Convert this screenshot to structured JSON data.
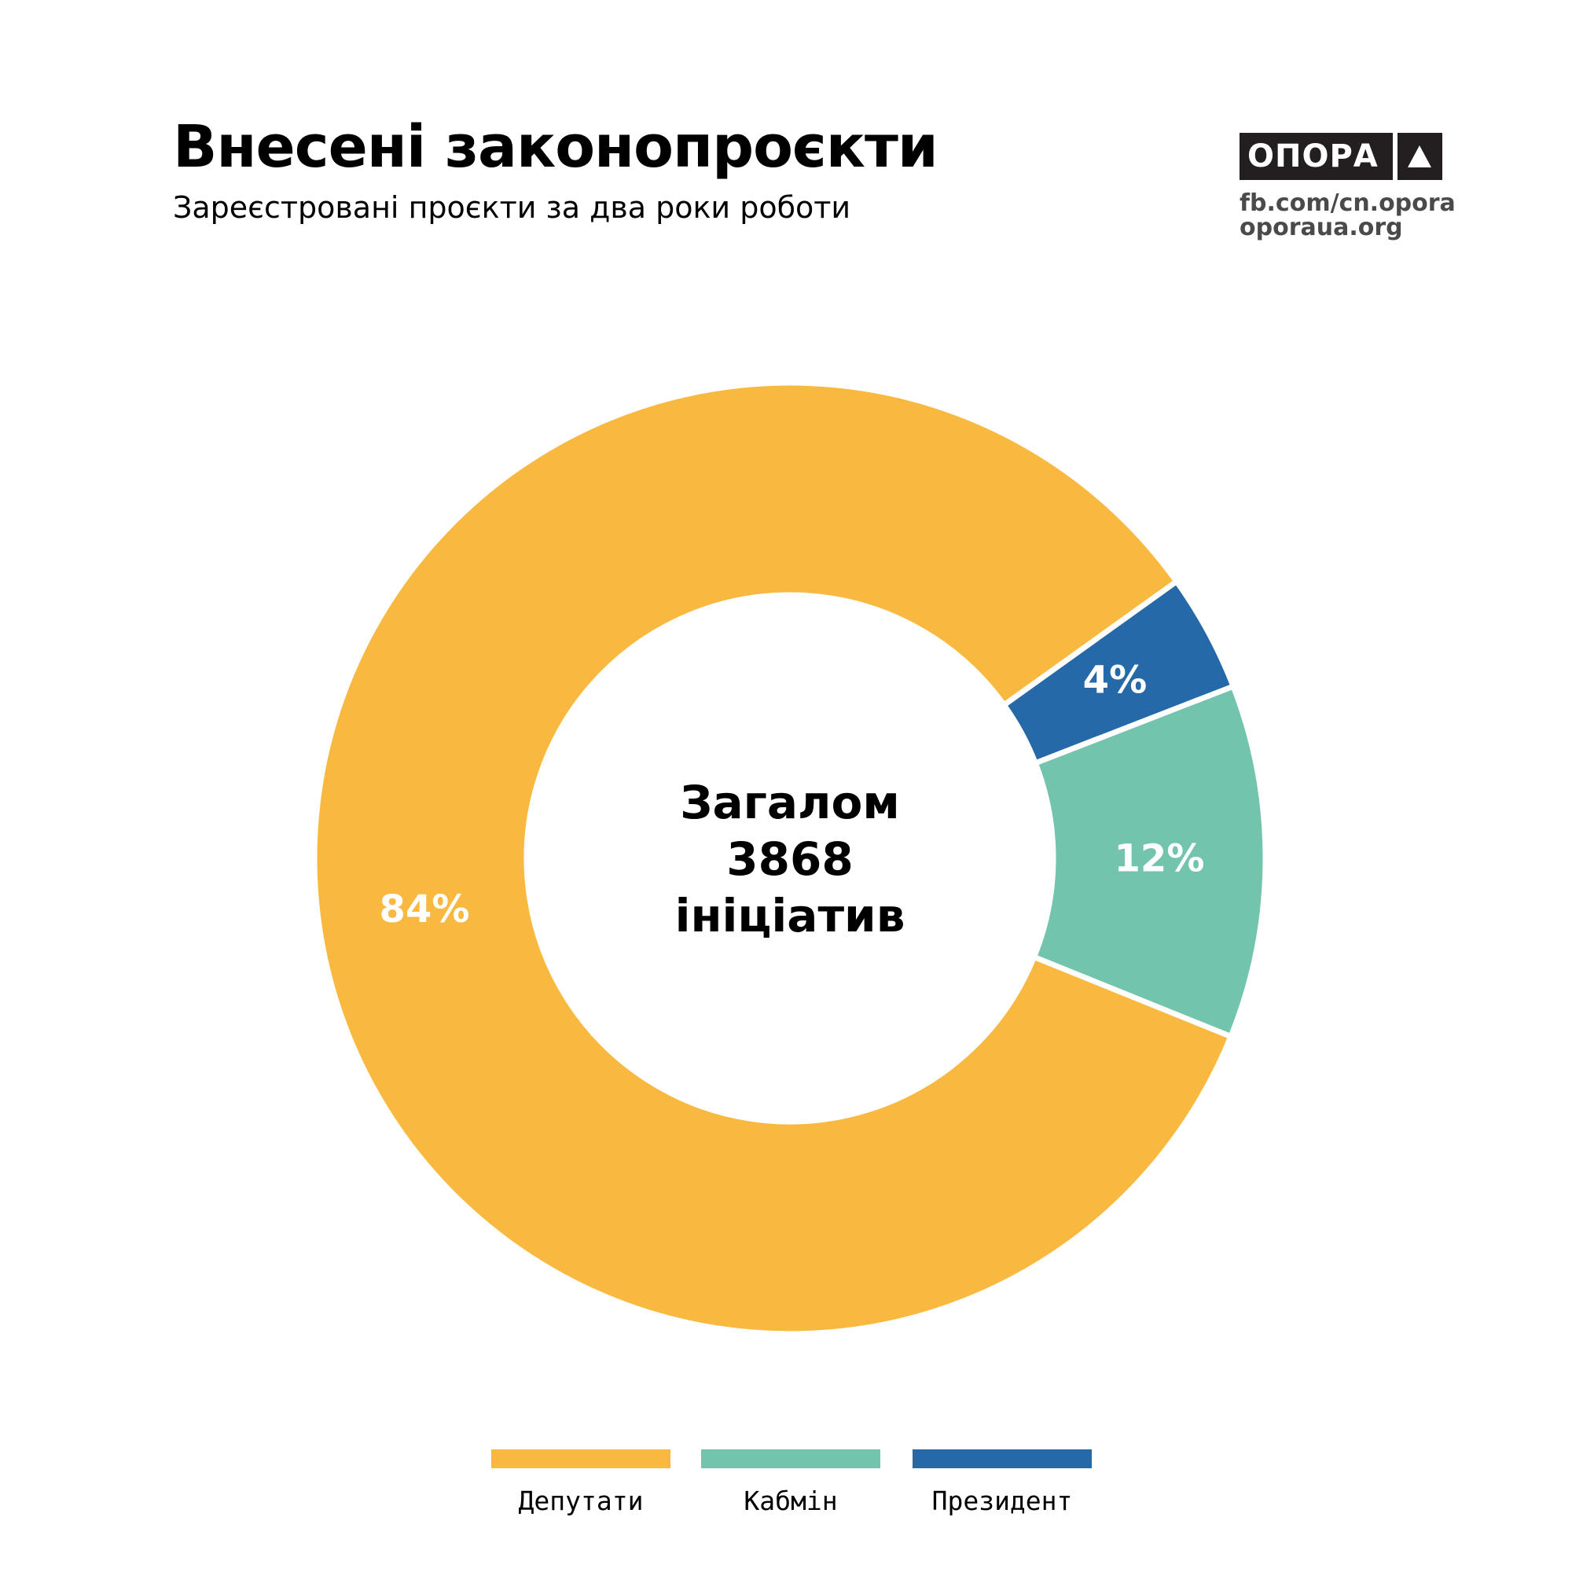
{
  "header": {
    "title": "Внесені законопроєкти",
    "subtitle": "Зареєстровані проєкти за два роки роботи"
  },
  "branding": {
    "logo_text": "ОПОРА",
    "logo_icon": "triangle-icon",
    "link_facebook": "fb.com/cn.opora",
    "link_site": "oporaua.org"
  },
  "center": {
    "line1": "Загалом",
    "line2": "3868",
    "line3": "ініціатив"
  },
  "chart_data": {
    "type": "pie",
    "donut": true,
    "series": [
      {
        "name": "Депутати",
        "value": 84,
        "label": "84%",
        "color": "#F9B941"
      },
      {
        "name": "Кабмін",
        "value": 12,
        "label": "12%",
        "color": "#72C4AC"
      },
      {
        "name": "Президент",
        "value": 4,
        "label": "4%",
        "color": "#2669A8"
      }
    ],
    "total_label": "Загалом 3868 ініціатив",
    "legend_position": "bottom"
  },
  "legend": {
    "items": [
      {
        "label": "Депутати",
        "color": "#F9B941"
      },
      {
        "label": "Кабмін",
        "color": "#72C4AC"
      },
      {
        "label": "Президент",
        "color": "#2669A8"
      }
    ]
  }
}
